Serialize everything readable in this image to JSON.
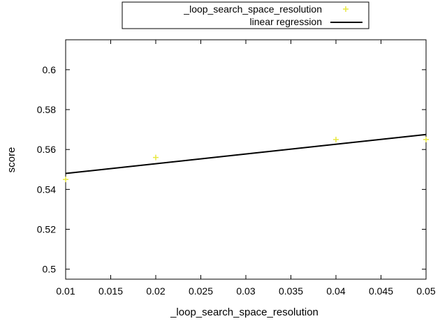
{
  "chart_data": {
    "type": "scatter",
    "title": "",
    "xlabel": "_loop_search_space_resolution",
    "ylabel": "score",
    "xlim": [
      0.01,
      0.05
    ],
    "ylim": [
      0.495,
      0.615
    ],
    "xticks": [
      0.01,
      0.015,
      0.02,
      0.025,
      0.03,
      0.035,
      0.04,
      0.045,
      0.05
    ],
    "yticks": [
      0.5,
      0.52,
      0.54,
      0.56,
      0.58,
      0.6
    ],
    "xtick_labels": [
      "0.01",
      "0.015",
      "0.02",
      "0.025",
      "0.03",
      "0.035",
      "0.04",
      "0.045",
      "0.05"
    ],
    "ytick_labels": [
      "0.5",
      "0.52",
      "0.54",
      "0.56",
      "0.58",
      "0.6"
    ],
    "grid": false,
    "legend_position": "top-center",
    "series": [
      {
        "name": "_loop_search_space_resolution",
        "kind": "points",
        "marker": "plus",
        "color": "#e8e840",
        "x": [
          0.01,
          0.02,
          0.04,
          0.05
        ],
        "y": [
          0.545,
          0.556,
          0.565,
          0.565
        ]
      },
      {
        "name": "linear regression",
        "kind": "line",
        "color": "#000000",
        "x": [
          0.01,
          0.05
        ],
        "y": [
          0.548,
          0.5675
        ]
      }
    ]
  }
}
